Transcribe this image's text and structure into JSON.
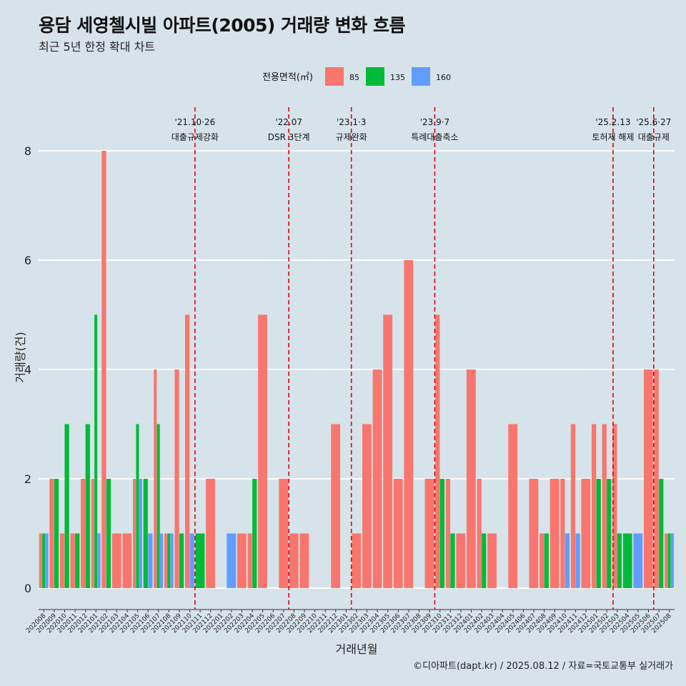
{
  "title": "용담 세영첼시빌 아파트(2005) 거래량 변화 흐름",
  "subtitle": "최근 5년 한정 확대 차트",
  "caption": "©디아파트(dapt.kr) / 2025.08.12 / 자료=국토교통부 실거래가",
  "chart_data": {
    "type": "bar",
    "xlabel": "거래년월",
    "ylabel": "거래량(건)",
    "ylim": [
      0,
      8.8
    ],
    "yticks": [
      0,
      2,
      4,
      6,
      8
    ],
    "grid": "horizontal",
    "legend": {
      "title": "전용면적(㎡)",
      "placement": "top"
    },
    "colors": {
      "85": "#f8766d",
      "135": "#00ba38",
      "160": "#619cff"
    },
    "categories": [
      "202008",
      "202009",
      "202010",
      "202011",
      "202012",
      "202101",
      "202102",
      "202103",
      "202104",
      "202105",
      "202106",
      "202107",
      "202108",
      "202109",
      "202110",
      "202111",
      "202112",
      "202201",
      "202202",
      "202203",
      "202204",
      "202205",
      "202206",
      "202207",
      "202208",
      "202209",
      "202210",
      "202211",
      "202212",
      "202301",
      "202302",
      "202303",
      "202304",
      "202305",
      "202306",
      "202307",
      "202308",
      "202309",
      "202310",
      "202311",
      "202312",
      "202401",
      "202402",
      "202403",
      "202404",
      "202405",
      "202406",
      "202407",
      "202408",
      "202409",
      "202410",
      "202411",
      "202412",
      "202501",
      "202502",
      "202503",
      "202504",
      "202505",
      "202506",
      "202507",
      "202508"
    ],
    "series": [
      {
        "name": "85",
        "values": [
          1,
          2,
          1,
          1,
          2,
          2,
          8,
          1,
          1,
          2,
          0,
          4,
          1,
          4,
          5,
          0,
          2,
          0,
          0,
          1,
          1,
          5,
          0,
          2,
          1,
          1,
          0,
          0,
          3,
          0,
          1,
          3,
          4,
          5,
          2,
          6,
          0,
          2,
          5,
          2,
          1,
          4,
          2,
          1,
          0,
          3,
          0,
          2,
          1,
          2,
          2,
          3,
          2,
          3,
          3,
          3,
          0,
          0,
          4,
          4,
          1
        ]
      },
      {
        "name": "135",
        "values": [
          1,
          2,
          3,
          1,
          3,
          5,
          2,
          0,
          0,
          3,
          2,
          3,
          1,
          1,
          0,
          1,
          0,
          0,
          0,
          0,
          2,
          0,
          0,
          0,
          0,
          0,
          0,
          0,
          0,
          0,
          0,
          0,
          0,
          0,
          0,
          0,
          0,
          0,
          2,
          1,
          0,
          0,
          1,
          0,
          0,
          0,
          0,
          0,
          1,
          0,
          0,
          0,
          0,
          2,
          2,
          1,
          1,
          0,
          0,
          2,
          1
        ]
      },
      {
        "name": "160",
        "values": [
          1,
          0,
          0,
          0,
          0,
          1,
          0,
          0,
          0,
          2,
          1,
          1,
          1,
          0,
          1,
          0,
          0,
          0,
          1,
          0,
          0,
          0,
          0,
          0,
          0,
          0,
          0,
          0,
          0,
          0,
          0,
          0,
          0,
          0,
          0,
          0,
          0,
          0,
          0,
          0,
          0,
          0,
          0,
          0,
          0,
          0,
          0,
          0,
          0,
          0,
          1,
          1,
          0,
          0,
          0,
          0,
          0,
          1,
          0,
          0,
          1
        ]
      }
    ],
    "annotations": [
      {
        "index": 14.5,
        "date": "'21.10·26",
        "label": "대출규제강화"
      },
      {
        "index": 23.5,
        "date": "'22.07",
        "label": "DSR 3단계"
      },
      {
        "index": 29.5,
        "date": "'23.1·3",
        "label": "규제완화"
      },
      {
        "index": 37.5,
        "date": "'23.9·7",
        "label": "특례대출축소"
      },
      {
        "index": 54.6,
        "date": "'25.2.13",
        "label": "토허제 해제"
      },
      {
        "index": 58.5,
        "date": "'25.6·27",
        "label": "대출규제"
      }
    ]
  }
}
